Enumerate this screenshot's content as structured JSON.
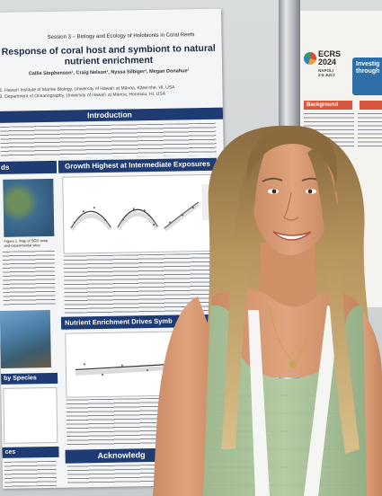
{
  "poster": {
    "session": "Session 3 – Biology and Ecology of Holobionts in Coral Reefs",
    "title_line1": "Response of coral host and symbiont to natural",
    "title_line2": "nutrient enrichment",
    "authors": "Callie Stephenson¹, Craig Nelson¹, Nyssa Silbiger², Megan Donahue¹",
    "affiliation1": "1. Hawai‘i Institute of Marine Biology, University of Hawai‘i at Mānoa, Kāne‘ohe, HI, USA",
    "affiliation2": "2. Department of Oceanography, University of Hawai‘i at Mānoa, Honolulu, HI, USA",
    "intro_heading": "Introduction",
    "growth_heading": "Growth Highest at Intermediate Exposures",
    "left_heading": "ds",
    "nutrient_heading": "Nutrient Enrichment Drives Symb",
    "species_heading": "by Species",
    "ces_heading": "ces",
    "ack_heading": "Acknowledg",
    "map_caption": "Figure 1. Map of SGD seep and experimental sites",
    "univariate_label": "Univariate models:",
    "multivariate_label": "Multivariate Support:"
  },
  "right_poster": {
    "ecrs_title": "ECRS\n2024",
    "ecrs_place": "NAPOLI\n2-5 JULY",
    "investig_text": "Investig\nthrough",
    "background_tag": "Background"
  },
  "colors": {
    "poster_band": "#1f3b73",
    "top_wear": "#a8c39a",
    "lanyard": "#f4f4f2",
    "hair": "#b28e58"
  }
}
